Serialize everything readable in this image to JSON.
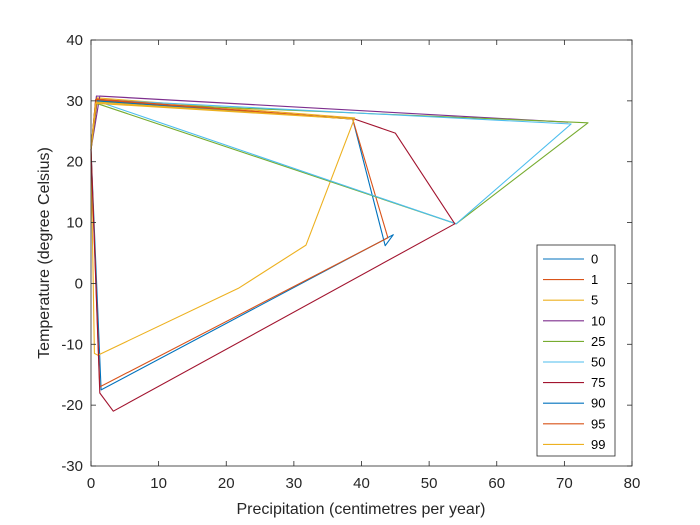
{
  "chart_data": {
    "type": "line",
    "title": "",
    "xlabel": "Precipitation (centimetres per year)",
    "ylabel": "Temperature (degree Celsius)",
    "xlim": [
      0,
      80
    ],
    "ylim": [
      -30,
      40
    ],
    "xticks": [
      0,
      10,
      20,
      30,
      40,
      50,
      60,
      70,
      80
    ],
    "yticks": [
      -30,
      -20,
      -10,
      0,
      10,
      20,
      30,
      40
    ],
    "grid": false,
    "legend": "bottom-right",
    "series": [
      {
        "name": "0",
        "color": "#0072BD",
        "x": [
          0,
          1.5,
          44.7,
          43.5,
          38.7,
          0.8,
          0
        ],
        "y": [
          22,
          -17.5,
          8,
          6.2,
          27,
          30,
          22
        ]
      },
      {
        "name": "1",
        "color": "#D95319",
        "x": [
          0,
          1.3,
          43.9,
          38.7,
          0.7,
          0
        ],
        "y": [
          22,
          -17,
          7.5,
          27,
          30.2,
          22
        ]
      },
      {
        "name": "5",
        "color": "#EDB120",
        "x": [
          0,
          0.5,
          1,
          21.8,
          31.8,
          39,
          0.8,
          0
        ],
        "y": [
          22,
          -11.5,
          -11.8,
          -0.8,
          6.3,
          27.2,
          30.5,
          22
        ]
      },
      {
        "name": "10",
        "color": "#7E2F8E",
        "x": [
          0,
          0.8,
          70.5,
          1.3,
          0
        ],
        "y": [
          22,
          30.8,
          26.5,
          30.8,
          22
        ]
      },
      {
        "name": "25",
        "color": "#77AC30",
        "x": [
          0,
          0.9,
          73.5,
          54,
          0.8,
          0
        ],
        "y": [
          22,
          29.8,
          26.4,
          9.8,
          29.6,
          22
        ]
      },
      {
        "name": "50",
        "color": "#4DBEEE",
        "x": [
          0,
          0.9,
          71,
          54,
          0.8,
          0
        ],
        "y": [
          22,
          30.2,
          26.2,
          9.8,
          30,
          22
        ]
      },
      {
        "name": "75",
        "color": "#A2142F",
        "x": [
          0,
          1.3,
          3.3,
          53.8,
          45,
          39,
          0.9,
          0
        ],
        "y": [
          22,
          -18,
          -21,
          9.8,
          24.7,
          27,
          30.1,
          22
        ]
      },
      {
        "name": "90",
        "color": "#0072BD",
        "x": [
          0,
          0.7,
          39,
          0.8,
          0
        ],
        "y": [
          22,
          30,
          27,
          30.1,
          22
        ]
      },
      {
        "name": "95",
        "color": "#D95319",
        "x": [
          0,
          0.7,
          39,
          0.8,
          0
        ],
        "y": [
          22,
          30.2,
          27,
          30.3,
          22
        ]
      },
      {
        "name": "99",
        "color": "#EDB120",
        "x": [
          0,
          0.7,
          39,
          0.8,
          0
        ],
        "y": [
          22,
          29.6,
          27,
          29.8,
          22
        ]
      }
    ]
  }
}
